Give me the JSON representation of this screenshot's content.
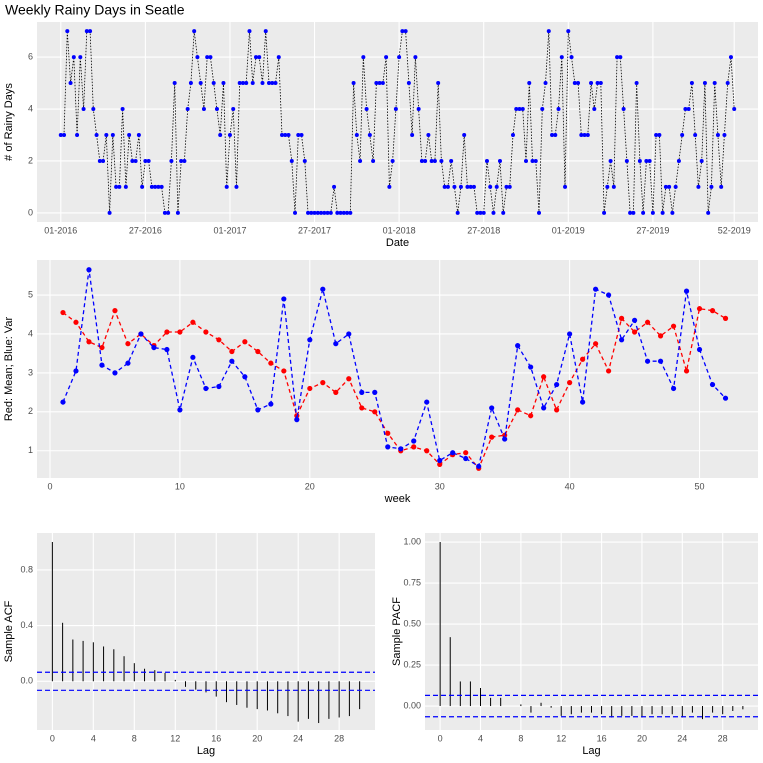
{
  "chart_data": [
    {
      "type": "line",
      "title": "Weekly Rainy Days in Seatle",
      "xlabel": "Date",
      "ylabel": "# of Rainy Days",
      "grid": true,
      "line_color": "#000000",
      "line_style": "dotted",
      "categories": [
        "01-2016",
        null,
        null,
        null,
        null,
        null,
        null,
        null,
        null,
        null,
        null,
        null,
        null,
        null,
        null,
        null,
        null,
        null,
        null,
        null,
        null,
        null,
        null,
        null,
        null,
        null,
        "27-2016",
        null,
        null,
        null,
        null,
        null,
        null,
        null,
        null,
        null,
        null,
        null,
        null,
        null,
        null,
        null,
        null,
        null,
        null,
        null,
        null,
        null,
        null,
        null,
        null,
        null,
        "01-2017",
        null,
        null,
        null,
        null,
        null,
        null,
        null,
        null,
        null,
        null,
        null,
        null,
        null,
        null,
        null,
        null,
        null,
        null,
        null,
        null,
        null,
        null,
        null,
        null,
        null,
        "27-2017",
        null,
        null,
        null,
        null,
        null,
        null,
        null,
        null,
        null,
        null,
        null,
        null,
        null,
        null,
        null,
        null,
        null,
        null,
        null,
        null,
        null,
        null,
        null,
        null,
        null,
        "01-2018",
        null,
        null,
        null,
        null,
        null,
        null,
        null,
        null,
        null,
        null,
        null,
        null,
        null,
        null,
        null,
        null,
        null,
        null,
        null,
        null,
        null,
        null,
        null,
        null,
        null,
        "27-2018",
        null,
        null,
        null,
        null,
        null,
        null,
        null,
        null,
        null,
        null,
        null,
        null,
        null,
        null,
        null,
        null,
        null,
        null,
        null,
        null,
        null,
        null,
        null,
        null,
        null,
        "01-2019",
        null,
        null,
        null,
        null,
        null,
        null,
        null,
        null,
        null,
        null,
        null,
        null,
        null,
        null,
        null,
        null,
        null,
        null,
        null,
        null,
        null,
        null,
        null,
        null,
        null,
        "27-2019",
        null,
        null,
        null,
        null,
        null,
        null,
        null,
        null,
        null,
        null,
        null,
        null,
        null,
        null,
        null,
        null,
        null,
        null,
        null,
        null,
        null,
        null,
        null,
        null,
        "52-2019"
      ],
      "series": [
        {
          "color": "#0000ff",
          "values": [
            3,
            3,
            7,
            5,
            6,
            3,
            6,
            4,
            7,
            7,
            4,
            3,
            2,
            2,
            3,
            0,
            3,
            1,
            1,
            4,
            1,
            3,
            2,
            2,
            3,
            1,
            2,
            2,
            1,
            1,
            1,
            1,
            0,
            0,
            2,
            5,
            0,
            2,
            2,
            4,
            5,
            7,
            6,
            5,
            4,
            6,
            6,
            5,
            4,
            3,
            5,
            1,
            3,
            4,
            1,
            5,
            5,
            5,
            7,
            5,
            6,
            6,
            5,
            7,
            5,
            5,
            5,
            6,
            3,
            3,
            3,
            2,
            0,
            3,
            3,
            2,
            0,
            0,
            0,
            0,
            0,
            0,
            0,
            0,
            1,
            0,
            0,
            0,
            0,
            0,
            5,
            3,
            2,
            6,
            4,
            3,
            2,
            5,
            5,
            5,
            6,
            1,
            2,
            4,
            6,
            7,
            7,
            5,
            3,
            6,
            4,
            2,
            2,
            3,
            2,
            2,
            5,
            2,
            1,
            1,
            2,
            1,
            0,
            1,
            3,
            1,
            1,
            1,
            0,
            0,
            0,
            2,
            1,
            0,
            1,
            2,
            0,
            1,
            1,
            3,
            4,
            4,
            4,
            2,
            5,
            2,
            2,
            0,
            4,
            5,
            7,
            3,
            3,
            4,
            6,
            1,
            7,
            6,
            5,
            5,
            3,
            3,
            3,
            5,
            4,
            5,
            5,
            0,
            1,
            2,
            1,
            6,
            6,
            4,
            2,
            0,
            0,
            5,
            2,
            0,
            2,
            2,
            0,
            3,
            3,
            0,
            1,
            1,
            0,
            1,
            2,
            3,
            4,
            4,
            5,
            3,
            1,
            2,
            5,
            0,
            1,
            5,
            3,
            1,
            3,
            5,
            6,
            4
          ]
        }
      ],
      "ylim": [
        -0.35,
        7.35
      ],
      "yticks": [
        0,
        2,
        4,
        6
      ]
    },
    {
      "type": "line",
      "xlabel": "week",
      "ylabel": "Red: Mean; Blue: Var",
      "grid": true,
      "line_style": "dashed",
      "x": [
        1,
        2,
        3,
        4,
        5,
        6,
        7,
        8,
        9,
        10,
        11,
        12,
        13,
        14,
        15,
        16,
        17,
        18,
        19,
        20,
        21,
        22,
        23,
        24,
        25,
        26,
        27,
        28,
        29,
        30,
        31,
        32,
        33,
        34,
        35,
        36,
        37,
        38,
        39,
        40,
        41,
        42,
        43,
        44,
        45,
        46,
        47,
        48,
        49,
        50,
        51,
        52
      ],
      "series": [
        {
          "color": "#ff0000",
          "values": [
            4.55,
            4.3,
            3.8,
            3.65,
            4.6,
            3.75,
            4.0,
            3.7,
            4.05,
            4.05,
            4.3,
            4.05,
            3.85,
            3.55,
            3.8,
            3.55,
            3.25,
            3.05,
            1.9,
            2.6,
            2.75,
            2.5,
            2.85,
            2.1,
            2.0,
            1.45,
            1.0,
            1.1,
            1.0,
            0.65,
            0.9,
            0.95,
            0.55,
            1.35,
            1.4,
            2.05,
            1.9,
            2.9,
            2.05,
            2.75,
            3.35,
            3.75,
            3.05,
            4.4,
            4.05,
            4.3,
            3.95,
            4.2,
            3.05,
            4.65,
            4.6,
            4.4
          ]
        },
        {
          "color": "#0000ff",
          "values": [
            2.25,
            3.05,
            5.65,
            3.2,
            3.0,
            3.25,
            4.0,
            3.65,
            3.6,
            2.05,
            3.4,
            2.6,
            2.65,
            3.3,
            2.9,
            2.05,
            2.2,
            4.9,
            1.8,
            3.85,
            5.15,
            3.75,
            4.0,
            2.5,
            2.5,
            1.1,
            1.05,
            1.25,
            2.25,
            0.75,
            0.95,
            0.8,
            0.6,
            2.1,
            1.3,
            3.7,
            3.15,
            2.1,
            2.7,
            4.0,
            2.25,
            5.15,
            5.0,
            3.85,
            4.35,
            3.3,
            3.3,
            2.6,
            5.1,
            3.6,
            2.7,
            2.35
          ]
        }
      ],
      "xlim": [
        -1,
        54.5
      ],
      "xticks": [
        0,
        10,
        20,
        30,
        40,
        50
      ],
      "ylim": [
        0.3,
        5.9
      ],
      "yticks": [
        1,
        2,
        3,
        4,
        5
      ]
    },
    {
      "type": "stem",
      "xlabel": "Lag",
      "ylabel": "Sample ACF",
      "grid": true,
      "color": "#000000",
      "ci_color": "#0000ff",
      "ci_lines": [
        0.065,
        -0.065
      ],
      "x": [
        0,
        1,
        2,
        3,
        4,
        5,
        6,
        7,
        8,
        9,
        10,
        11,
        12,
        13,
        14,
        15,
        16,
        17,
        18,
        19,
        20,
        21,
        22,
        23,
        24,
        25,
        26,
        27,
        28,
        29,
        30
      ],
      "values": [
        1,
        0.42,
        0.3,
        0.29,
        0.28,
        0.25,
        0.23,
        0.18,
        0.13,
        0.09,
        0.08,
        0.06,
        0.01,
        -0.04,
        -0.06,
        -0.08,
        -0.11,
        -0.15,
        -0.17,
        -0.19,
        -0.2,
        -0.21,
        -0.23,
        -0.25,
        -0.29,
        -0.27,
        -0.3,
        -0.27,
        -0.26,
        -0.25,
        -0.2
      ],
      "xlim": [
        -1.5,
        31.5
      ],
      "xticks": [
        0,
        4,
        8,
        12,
        16,
        20,
        24,
        28
      ],
      "ylim": [
        -0.35,
        1.065
      ],
      "yticks": [
        {
          "value": 0,
          "label": "0.0"
        },
        0.4,
        0.8
      ]
    },
    {
      "type": "stem",
      "xlabel": "Lag",
      "ylabel": "Sample PACF",
      "grid": true,
      "color": "#000000",
      "ci_color": "#0000ff",
      "ci_lines": [
        0.065,
        -0.065
      ],
      "x": [
        0,
        1,
        2,
        3,
        4,
        5,
        6,
        7,
        8,
        9,
        10,
        11,
        12,
        13,
        14,
        15,
        16,
        17,
        18,
        19,
        20,
        21,
        22,
        23,
        24,
        25,
        26,
        27,
        28,
        29,
        30
      ],
      "values": [
        1,
        0.42,
        0.15,
        0.15,
        0.11,
        0.05,
        0.05,
        0.0,
        0.01,
        -0.04,
        0.02,
        -0.01,
        -0.06,
        -0.05,
        -0.04,
        -0.04,
        -0.05,
        -0.07,
        -0.06,
        -0.06,
        -0.07,
        -0.05,
        -0.05,
        -0.05,
        -0.07,
        -0.04,
        -0.08,
        -0.04,
        -0.05,
        -0.03,
        -0.02
      ],
      "xlim": [
        -1.5,
        31.5
      ],
      "xticks": [
        0,
        4,
        8,
        12,
        16,
        20,
        24,
        28
      ],
      "ylim": [
        -0.146,
        1.055
      ],
      "yticks": [
        {
          "value": 0,
          "label": "0.00"
        },
        0.25,
        {
          "value": 0.5,
          "label": "0.50"
        },
        0.75,
        {
          "value": 1,
          "label": "1.00"
        }
      ]
    }
  ]
}
